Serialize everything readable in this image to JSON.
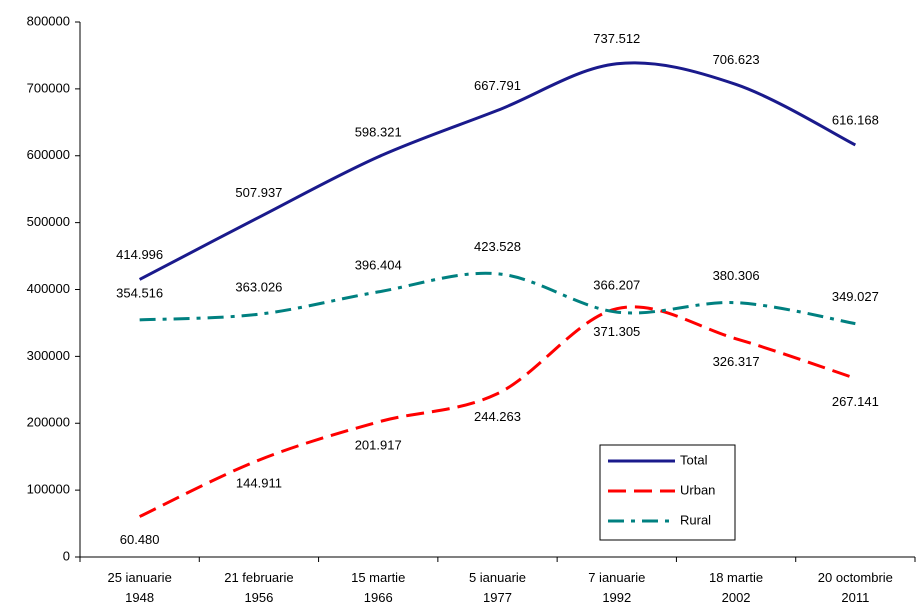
{
  "chart_data": {
    "type": "line",
    "categories": [
      "25 ianuarie 1948",
      "21 februarie 1956",
      "15 martie 1966",
      "5 ianuarie 1977",
      "7 ianuarie 1992",
      "18 martie 2002",
      "20 octombrie 2011"
    ],
    "series": [
      {
        "name": "Total",
        "color": "#1a1a8c",
        "dash": "solid",
        "values": [
          414996,
          507937,
          598321,
          667791,
          737512,
          706623,
          616168
        ],
        "value_labels": [
          "414.996",
          "507.937",
          "598.321",
          "667.791",
          "737.512",
          "706.623",
          "616.168"
        ]
      },
      {
        "name": "Urban",
        "color": "#ff0000",
        "dash": "dashed",
        "values": [
          60480,
          144911,
          201917,
          244263,
          371305,
          326317,
          267141
        ],
        "value_labels": [
          "60.480",
          "144.911",
          "201.917",
          "244.263",
          "371.305",
          "326.317",
          "267.141"
        ]
      },
      {
        "name": "Rural",
        "color": "#008080",
        "dash": "dashdot",
        "values": [
          354516,
          363026,
          396404,
          423528,
          366207,
          380306,
          349027
        ],
        "value_labels": [
          "354.516",
          "363.026",
          "396.404",
          "423.528",
          "366.207",
          "380.306",
          "349.027"
        ]
      }
    ],
    "ylim": [
      0,
      800000
    ],
    "yticks": [
      0,
      100000,
      200000,
      300000,
      400000,
      500000,
      600000,
      700000,
      800000
    ],
    "smooth": true
  }
}
